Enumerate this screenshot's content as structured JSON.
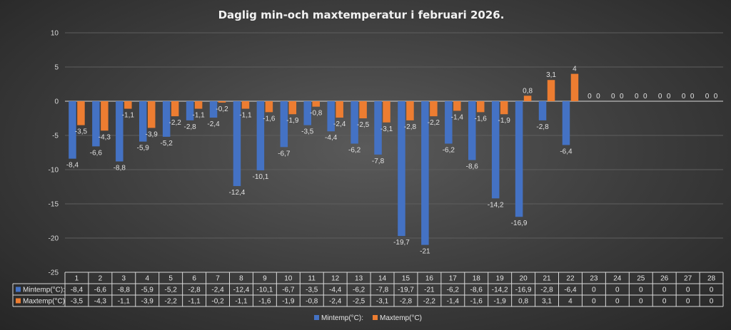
{
  "chart_data": {
    "type": "bar",
    "title": "Daglig min-och maxtemperatur i februari 2026.",
    "categories": [
      "1",
      "2",
      "3",
      "4",
      "5",
      "6",
      "7",
      "8",
      "9",
      "10",
      "11",
      "12",
      "13",
      "14",
      "15",
      "16",
      "17",
      "18",
      "19",
      "20",
      "21",
      "22",
      "23",
      "24",
      "25",
      "26",
      "27",
      "28"
    ],
    "series": [
      {
        "name": "Mintemp(°C):",
        "color": "#4472c4",
        "values": [
          -8.4,
          -6.6,
          -8.8,
          -5.9,
          -5.2,
          -2.8,
          -2.4,
          -12.4,
          -10.1,
          -6.7,
          -3.5,
          -4.4,
          -6.2,
          -7.8,
          -19.7,
          -21,
          -6.2,
          -8.6,
          -14.2,
          -16.9,
          -2.8,
          -6.4,
          0,
          0,
          0,
          0,
          0,
          0
        ],
        "labels": [
          "-8,4",
          "-6,6",
          "-8,8",
          "-5,9",
          "-5,2",
          "-2,8",
          "-2,4",
          "-12,4",
          "-10,1",
          "-6,7",
          "-3,5",
          "-4,4",
          "-6,2",
          "-7,8",
          "-19,7",
          "-21",
          "-6,2",
          "-8,6",
          "-14,2",
          "-16,9",
          "-2,8",
          "-6,4",
          "0",
          "0",
          "0",
          "0",
          "0",
          "0"
        ]
      },
      {
        "name": "Maxtemp(°C)",
        "color": "#ed7d31",
        "values": [
          -3.5,
          -4.3,
          -1.1,
          -3.9,
          -2.2,
          -1.1,
          -0.2,
          -1.1,
          -1.6,
          -1.9,
          -0.8,
          -2.4,
          -2.5,
          -3.1,
          -2.8,
          -2.2,
          -1.4,
          -1.6,
          -1.9,
          0.8,
          3.1,
          4,
          0,
          0,
          0,
          0,
          0,
          0
        ],
        "labels": [
          "-3,5",
          "-4,3",
          "-1,1",
          "-3,9",
          "-2,2",
          "-1,1",
          "-0,2",
          "-1,1",
          "-1,6",
          "-1,9",
          "-0,8",
          "-2,4",
          "-2,5",
          "-3,1",
          "-2,8",
          "-2,2",
          "-1,4",
          "-1,6",
          "-1,9",
          "0,8",
          "3,1",
          "4",
          "0",
          "0",
          "0",
          "0",
          "0",
          "0"
        ]
      }
    ],
    "ylim": [
      -25,
      10
    ],
    "yticks": [
      10,
      5,
      0,
      -5,
      -10,
      -15,
      -20,
      -25
    ],
    "grid": true,
    "data_table": true,
    "legend": [
      "Mintemp(°C):",
      "Maxtemp(°C)"
    ],
    "legend_position": "bottom"
  }
}
